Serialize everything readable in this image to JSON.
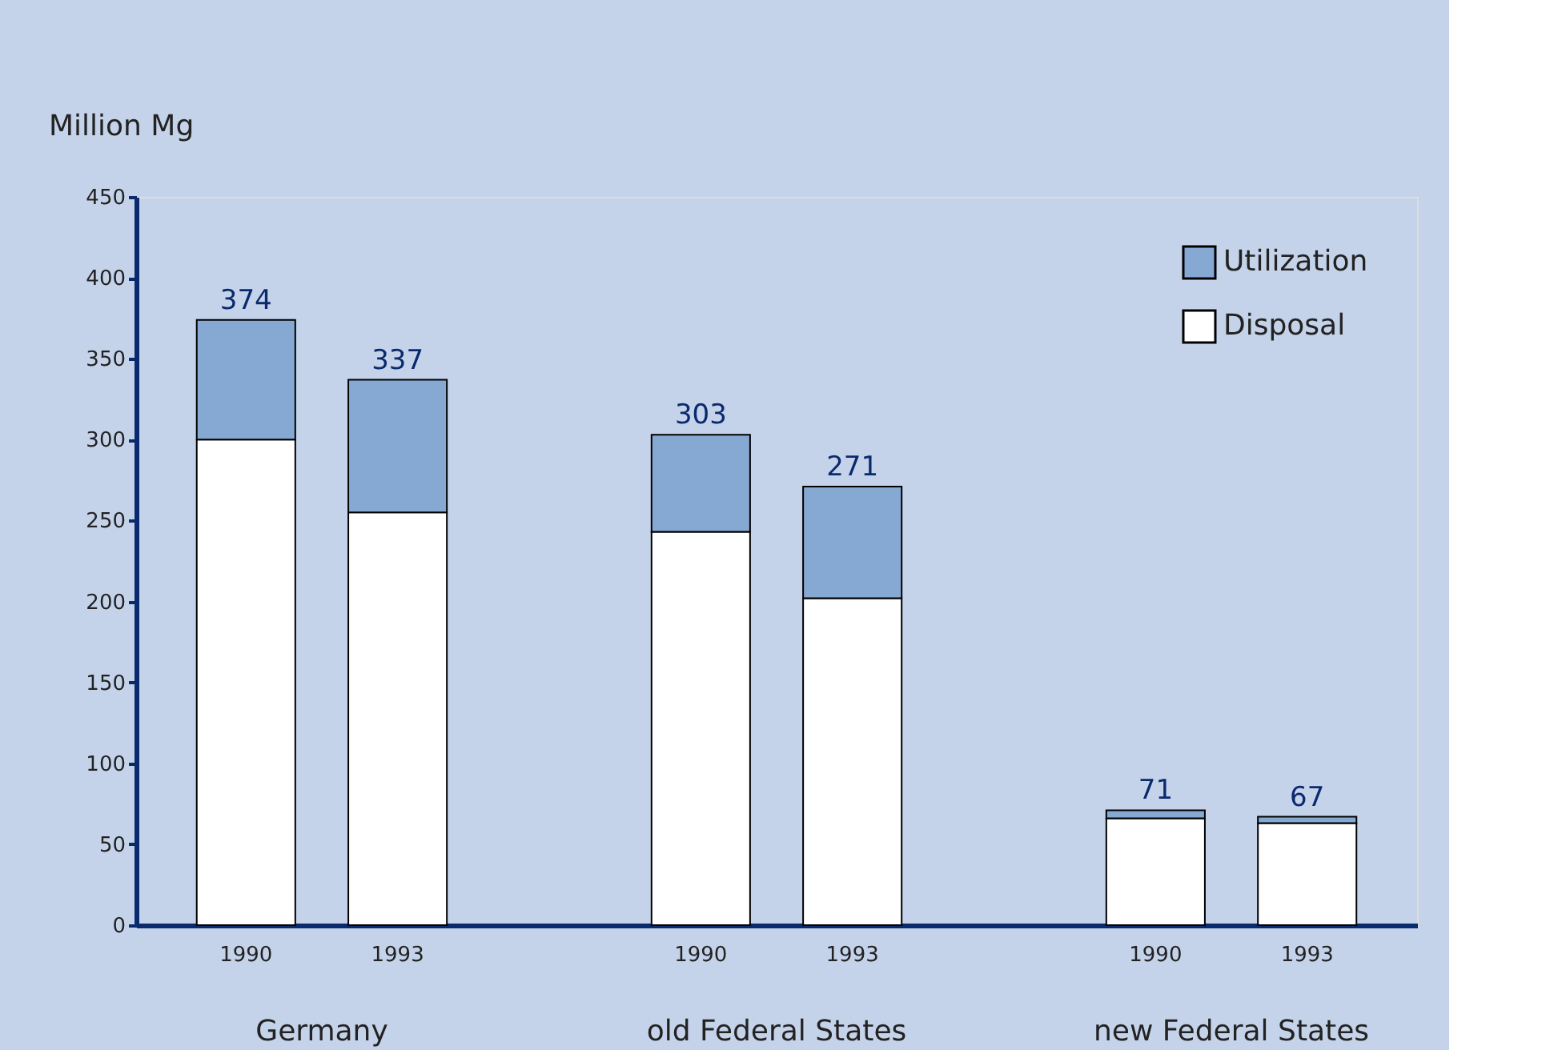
{
  "chart_data": {
    "type": "bar",
    "stacked": true,
    "categories": [
      "1990",
      "1993",
      "1990",
      "1993",
      "1990",
      "1993"
    ],
    "series": [
      {
        "name": "Disposal",
        "color": "#ffffff",
        "values": [
          300,
          255,
          243,
          202,
          66,
          63
        ]
      },
      {
        "name": "Utilization",
        "color": "#86a9d3",
        "values": [
          74,
          82,
          60,
          69,
          5,
          4
        ]
      }
    ],
    "totals": [
      "374",
      "337",
      "303",
      "271",
      "71",
      "67"
    ],
    "annotations": [
      "Germany",
      "old Federal States",
      "new Federal States"
    ],
    "ylabel": "Million Mg",
    "ylim": [
      0,
      450
    ],
    "yticks": [
      0,
      50,
      100,
      150,
      200,
      250,
      300,
      350,
      400,
      450
    ],
    "grid": false,
    "legend": "top right"
  }
}
